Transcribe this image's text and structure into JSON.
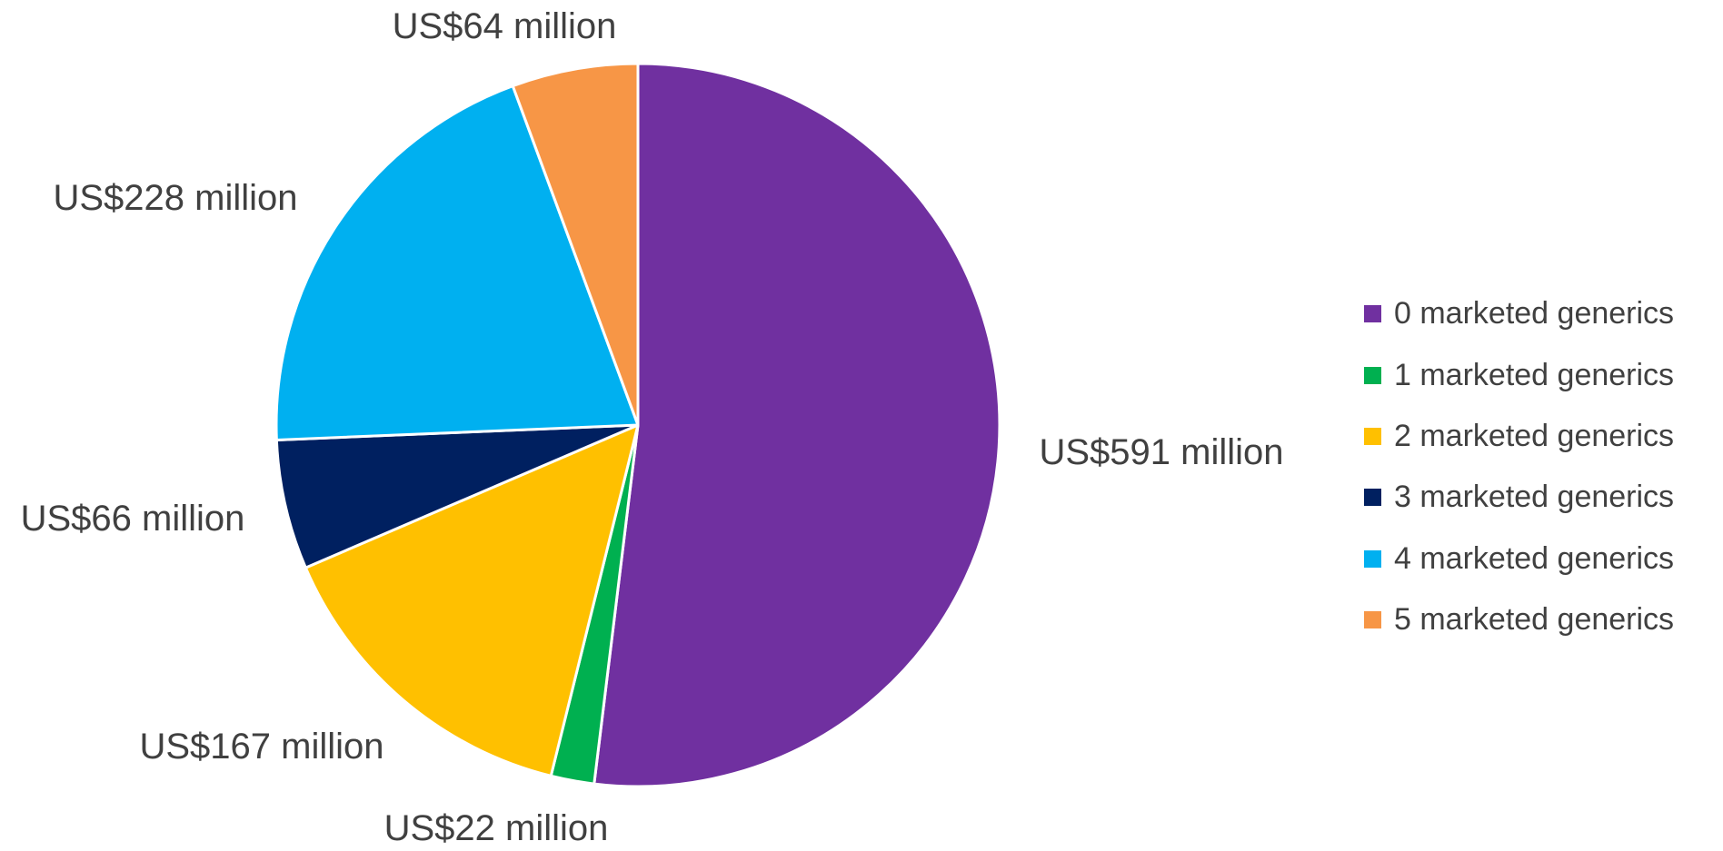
{
  "chart_data": {
    "type": "pie",
    "title": "",
    "categories": [
      "0 marketed generics",
      "1 marketed generics",
      "2 marketed generics",
      "3 marketed generics",
      "4 marketed generics",
      "5 marketed generics"
    ],
    "values": [
      591,
      22,
      167,
      66,
      228,
      64
    ],
    "unit": "US$ million",
    "data_labels": [
      "US$591 million",
      "US$22 million",
      "US$167 million",
      "US$66 million",
      "US$228 million",
      "US$64 million"
    ],
    "colors": [
      "#7030A0",
      "#00B050",
      "#FFC000",
      "#002060",
      "#00B0F0",
      "#F79646"
    ],
    "start_angle": "12 o'clock",
    "direction": "clockwise",
    "legend_position": "right"
  }
}
